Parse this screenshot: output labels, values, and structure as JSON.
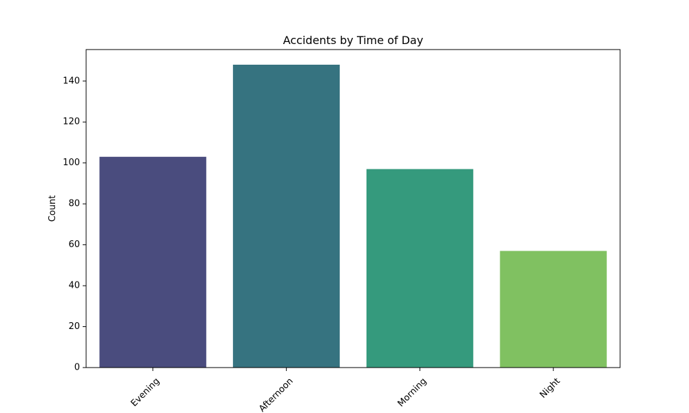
{
  "chart_data": {
    "type": "bar",
    "title": "Accidents by Time of Day",
    "xlabel": "",
    "ylabel": "Count",
    "categories": [
      "Evening",
      "Afternoon",
      "Morning",
      "Night"
    ],
    "values": [
      103,
      148,
      97,
      57
    ],
    "ylim": [
      0,
      155.4
    ],
    "yticks": [
      0,
      20,
      40,
      60,
      80,
      100,
      120,
      140
    ],
    "colors": [
      "#4a4c7e",
      "#367380",
      "#359a7d",
      "#80c161"
    ],
    "grid": false,
    "legend": false
  }
}
